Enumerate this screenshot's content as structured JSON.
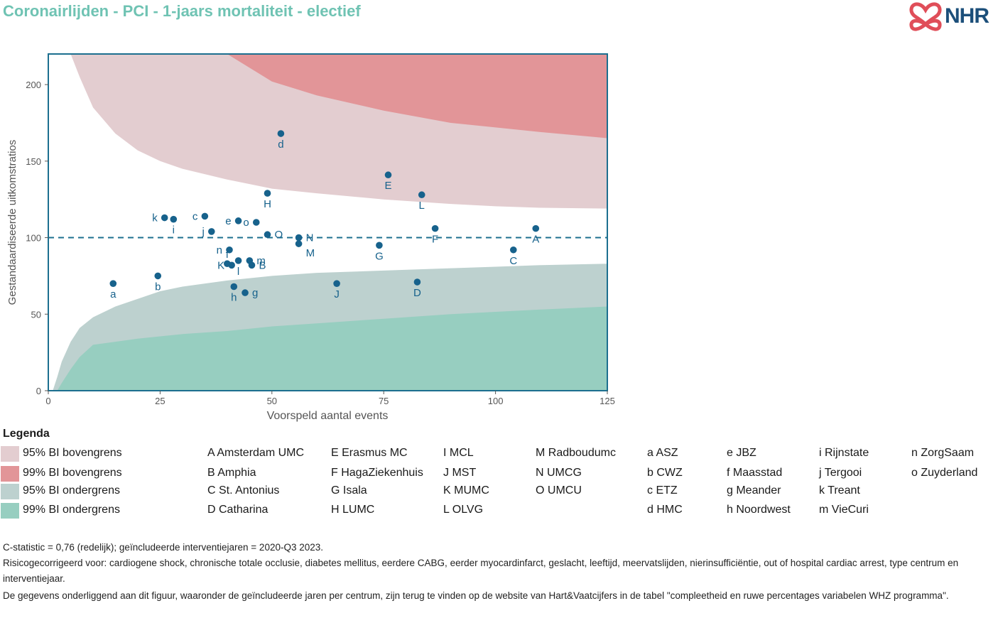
{
  "title": "Coronairlijden - PCI - 1-jaars mortaliteit - electief",
  "logo": {
    "text": "NHR",
    "icon": "nhr-heart-knot-icon"
  },
  "colors": {
    "ci95_upper": "#e3cdd0",
    "ci99_upper": "#e29598",
    "ci95_lower": "#bdd1cf",
    "ci99_lower": "#97cec0",
    "axis": "#1c6f8f",
    "points": "#17628c",
    "title": "#6fc3b3"
  },
  "chart_data": {
    "type": "scatter",
    "title": "",
    "xlabel": "Voorspeld aantal events",
    "ylabel": "Gestandaardiseerde uitkomstratios",
    "xlim": [
      0,
      125
    ],
    "ylim": [
      0,
      220
    ],
    "xticks": [
      "0",
      "25",
      "50",
      "75",
      "100",
      "125"
    ],
    "yticks": [
      "0",
      "50",
      "100",
      "150",
      "200"
    ],
    "reference_line": 100,
    "bands": {
      "x": [
        1,
        2,
        3,
        5,
        7,
        10,
        15,
        20,
        25,
        30,
        40,
        50,
        60,
        75,
        90,
        100,
        110,
        125
      ],
      "ci95_upper": [
        null,
        null,
        null,
        220,
        205,
        185,
        168,
        157,
        150,
        145,
        138,
        132,
        129,
        125,
        122,
        120.5,
        119.5,
        119
      ],
      "ci99_upper": [
        null,
        null,
        null,
        null,
        null,
        null,
        null,
        null,
        null,
        null,
        220,
        202,
        193,
        183,
        175,
        172,
        169,
        165
      ],
      "ci95_lower": [
        0,
        9,
        19,
        32,
        41,
        48,
        55,
        60,
        65,
        68,
        72,
        75,
        77,
        78.5,
        80,
        81,
        82,
        83
      ],
      "ci99_lower": [
        0,
        0,
        5,
        14,
        22,
        30,
        32,
        34,
        35.5,
        37,
        39,
        42,
        44,
        47,
        50,
        51.5,
        53,
        55
      ]
    },
    "points": [
      {
        "label": "a",
        "x": 14.5,
        "y": 70,
        "lpos": "below"
      },
      {
        "label": "b",
        "x": 24.5,
        "y": 75,
        "lpos": "below"
      },
      {
        "label": "k",
        "x": 26,
        "y": 113,
        "lpos": "left"
      },
      {
        "label": "i",
        "x": 28,
        "y": 112,
        "lpos": "below"
      },
      {
        "label": "c",
        "x": 35,
        "y": 114,
        "lpos": "left"
      },
      {
        "label": "j",
        "x": 36.5,
        "y": 104,
        "lpos": "left"
      },
      {
        "label": "n",
        "x": 40.5,
        "y": 92,
        "lpos": "left"
      },
      {
        "label": "e",
        "x": 42.5,
        "y": 111,
        "lpos": "left"
      },
      {
        "label": "o",
        "x": 46.5,
        "y": 110,
        "lpos": "left"
      },
      {
        "label": "f",
        "x": 40,
        "y": 83,
        "lpos": "above"
      },
      {
        "label": "K",
        "x": 41,
        "y": 82,
        "lpos": "left"
      },
      {
        "label": "l",
        "x": 42.5,
        "y": 85,
        "lpos": "below"
      },
      {
        "label": "m",
        "x": 45,
        "y": 85,
        "lpos": "right"
      },
      {
        "label": "B",
        "x": 45.5,
        "y": 82,
        "lpos": "right"
      },
      {
        "label": "h",
        "x": 41.5,
        "y": 68,
        "lpos": "below"
      },
      {
        "label": "g",
        "x": 44,
        "y": 64,
        "lpos": "right"
      },
      {
        "label": "O",
        "x": 49,
        "y": 102,
        "lpos": "right"
      },
      {
        "label": "H",
        "x": 49,
        "y": 129,
        "lpos": "below"
      },
      {
        "label": "d",
        "x": 52,
        "y": 168,
        "lpos": "below"
      },
      {
        "label": "N",
        "x": 56,
        "y": 100,
        "lpos": "right"
      },
      {
        "label": "M",
        "x": 56,
        "y": 96,
        "lpos": "rightbelow"
      },
      {
        "label": "J",
        "x": 64.5,
        "y": 70,
        "lpos": "below"
      },
      {
        "label": "G",
        "x": 74,
        "y": 95,
        "lpos": "below"
      },
      {
        "label": "E",
        "x": 76,
        "y": 141,
        "lpos": "below"
      },
      {
        "label": "D",
        "x": 82.5,
        "y": 71,
        "lpos": "below"
      },
      {
        "label": "L",
        "x": 83.5,
        "y": 128,
        "lpos": "below"
      },
      {
        "label": "F",
        "x": 86.5,
        "y": 106,
        "lpos": "below"
      },
      {
        "label": "C",
        "x": 104,
        "y": 92,
        "lpos": "below"
      },
      {
        "label": "A",
        "x": 109,
        "y": 106,
        "lpos": "below"
      }
    ]
  },
  "legend": {
    "title": "Legenda",
    "bands": [
      {
        "label": "95% BI bovengrens",
        "color": "#e3cdd0"
      },
      {
        "label": "99% BI bovengrens",
        "color": "#e29598"
      },
      {
        "label": "95% BI ondergrens",
        "color": "#bdd1cf"
      },
      {
        "label": "99% BI ondergrens",
        "color": "#97cec0"
      }
    ],
    "columns": [
      [
        "A Amsterdam UMC",
        "B Amphia",
        "C St. Antonius",
        "D Catharina"
      ],
      [
        "E Erasmus MC",
        "F HagaZiekenhuis",
        "G Isala",
        "H LUMC"
      ],
      [
        "I MCL",
        "J MST",
        "K MUMC",
        "L OLVG"
      ],
      [
        "M Radboudumc",
        "N UMCG",
        "O UMCU"
      ],
      [
        "a ASZ",
        "b CWZ",
        "c ETZ",
        "d HMC"
      ],
      [
        "e JBZ",
        "f Maasstad",
        "g Meander",
        "h Noordwest"
      ],
      [
        "i Rijnstate",
        "j Tergooi",
        "k Treant",
        "m VieCuri"
      ],
      [
        "n ZorgSaam",
        "o Zuyderland"
      ]
    ]
  },
  "footnotes": [
    "C-statistic =  0,76 (redelijk); geïncludeerde interventiejaren = 2020-Q3 2023.",
    "Risicogecorrigeerd voor: cardiogene shock, chronische totale occlusie, diabetes mellitus, eerdere CABG, eerder myocardinfarct, geslacht, leeftijd, meervatslijden, nierinsufficiëntie, out of hospital cardiac arrest, type centrum en interventiejaar.",
    "De gegevens onderliggend aan dit figuur, waaronder de geïncludeerde jaren per centrum, zijn terug te vinden op de website van Hart&Vaatcijfers in de tabel \"compleetheid en ruwe percentages variabelen WHZ programma\"."
  ]
}
